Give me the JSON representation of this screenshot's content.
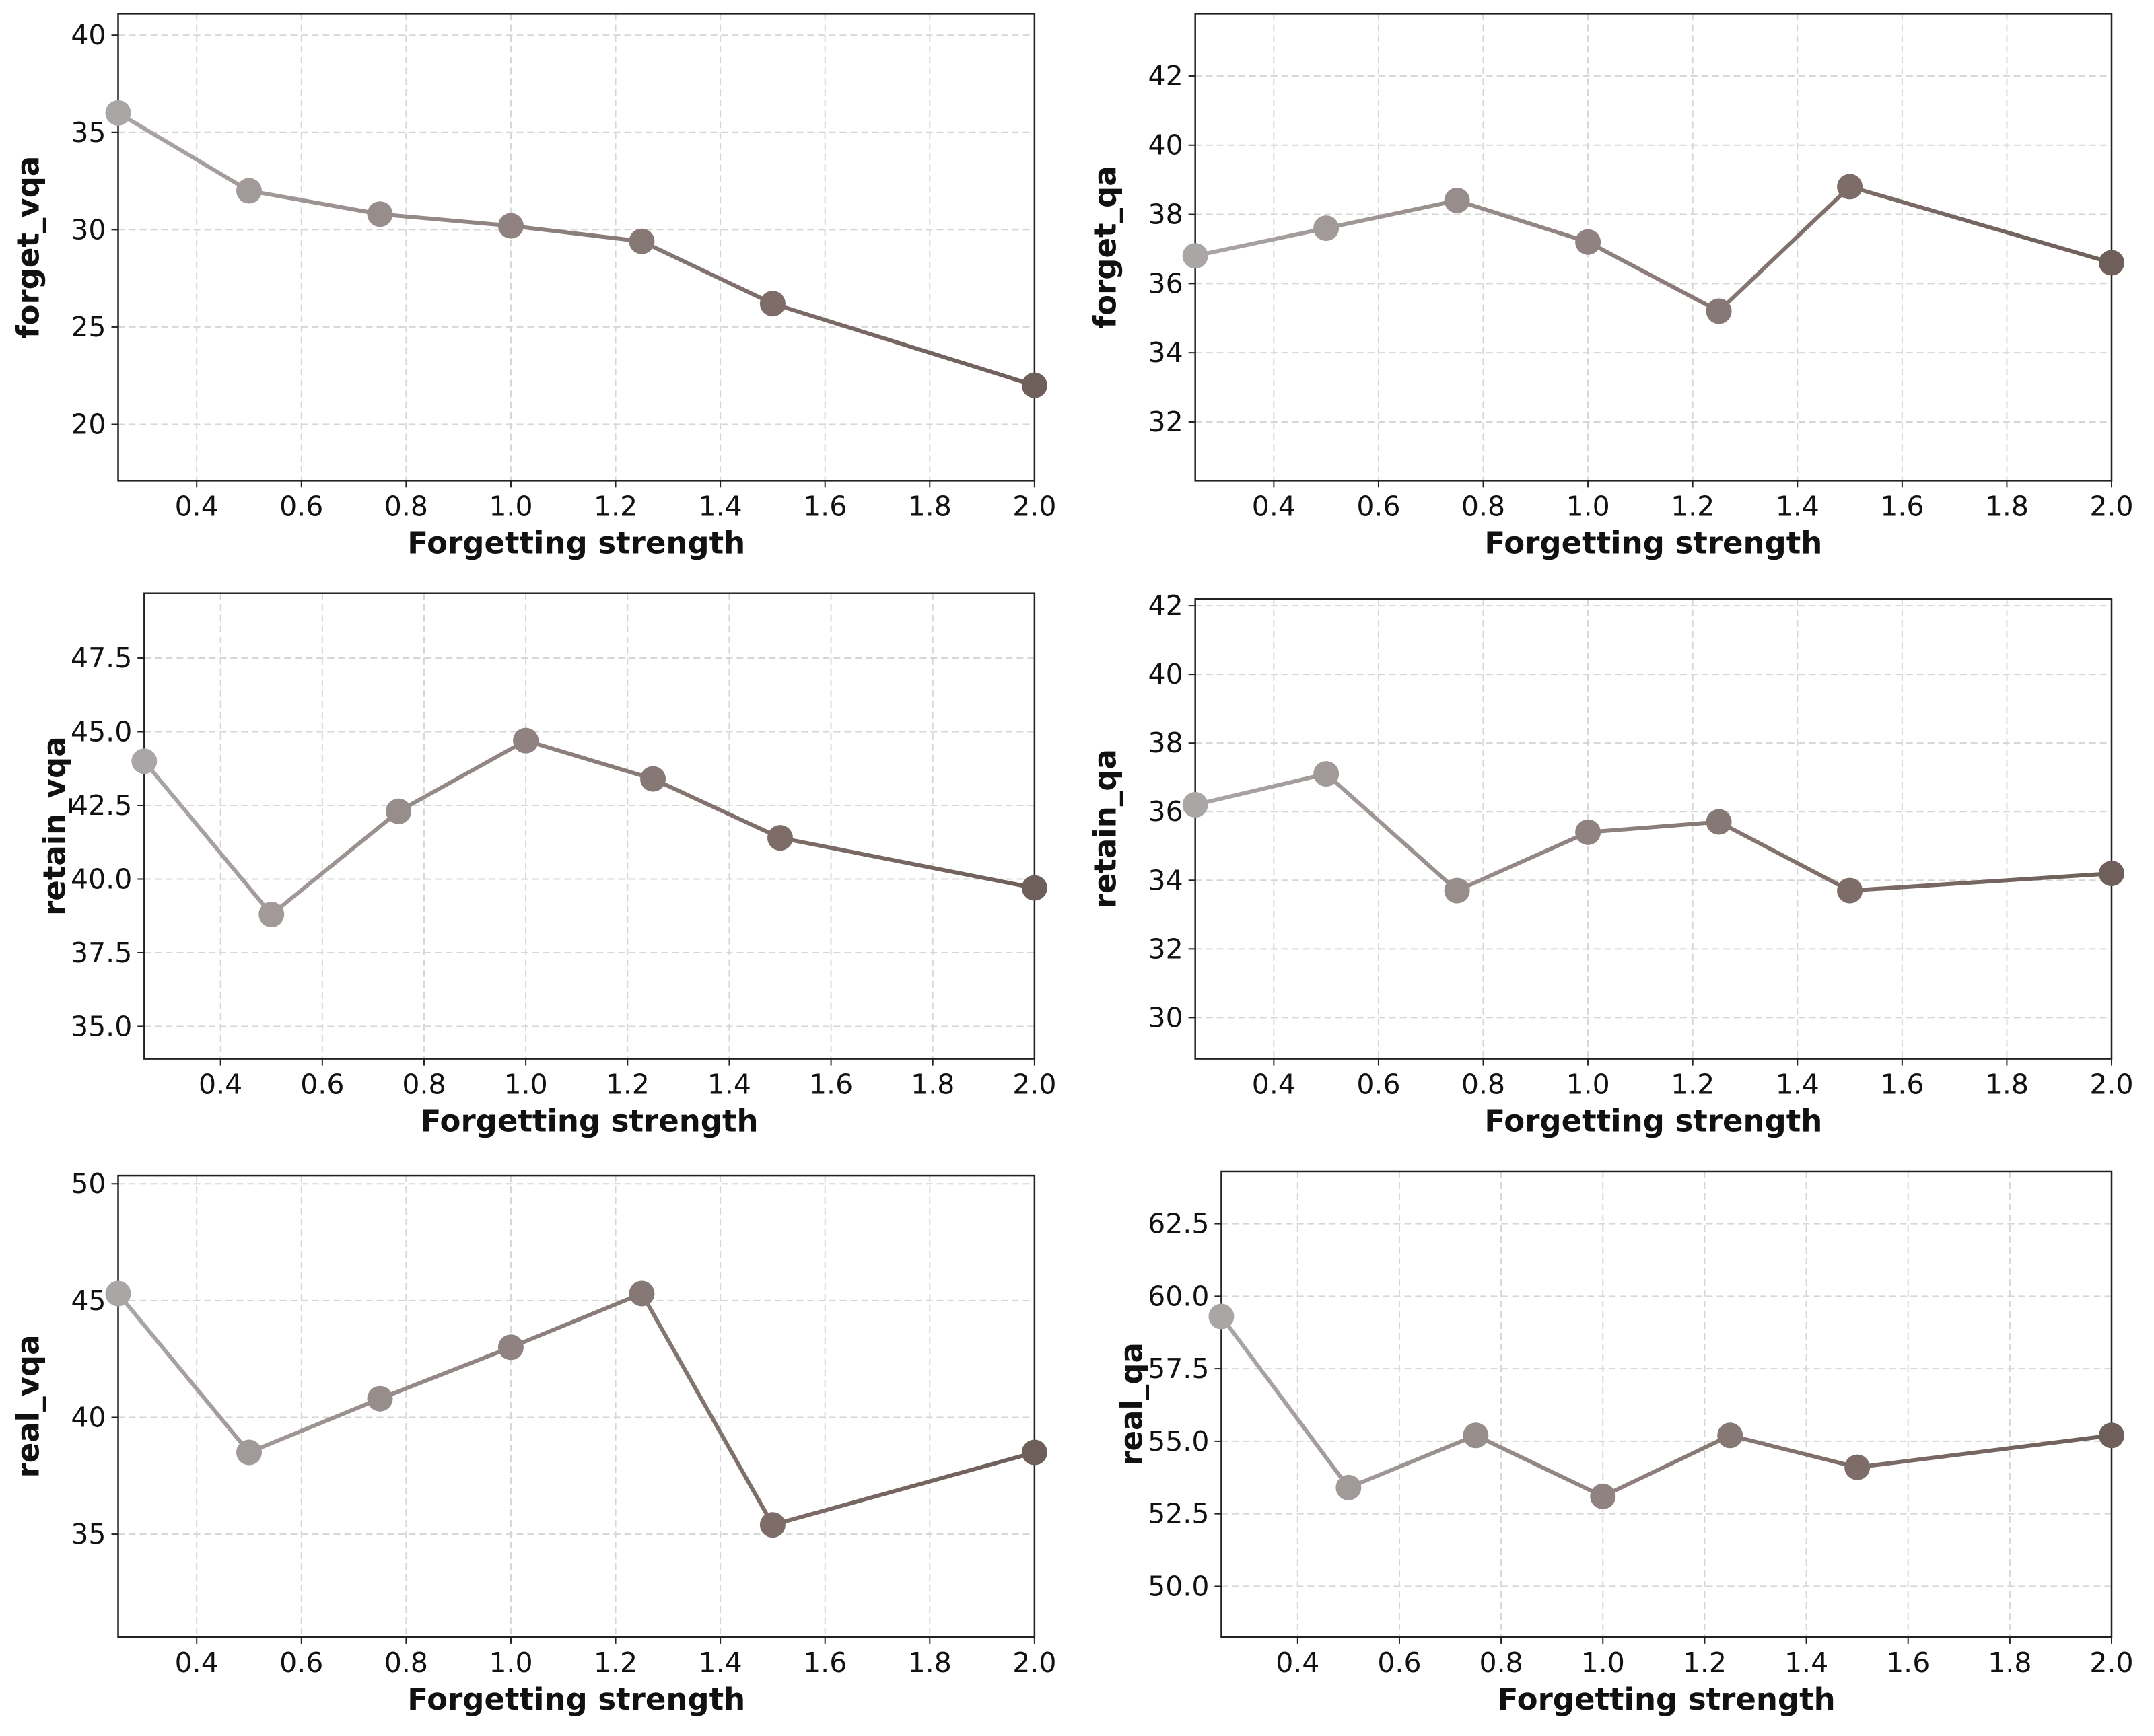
{
  "chart_data": [
    {
      "type": "line",
      "x_label": "Forgetting strength",
      "y_label": "forget_vqa",
      "x": [
        0.25,
        0.5,
        0.75,
        1,
        1.25,
        1.5,
        2
      ],
      "values": [
        36.0,
        32.0,
        30.8,
        30.2,
        29.4,
        26.2,
        22.0
      ],
      "colors": [
        "#aaa6a6",
        "#a29a99",
        "#978d8b",
        "#8f8280",
        "#867874",
        "#7d6c68",
        "#6e5f5a"
      ],
      "xlim": [
        0.25,
        2
      ],
      "ylim": [
        17.1,
        41.1
      ],
      "xticks": [
        0.4,
        0.6,
        0.8,
        {
          "value": 1,
          "label": "1.0"
        },
        1.2,
        1.4,
        1.6,
        1.8,
        {
          "value": 2,
          "label": "2.0"
        }
      ],
      "yticks": [
        20,
        25,
        30,
        35,
        40
      ],
      "grid": true
    },
    {
      "type": "line",
      "x_label": "Forgetting strength",
      "y_label": "forget_qa",
      "x": [
        0.25,
        0.5,
        0.75,
        1,
        1.25,
        1.5,
        2
      ],
      "values": [
        36.8,
        37.6,
        38.4,
        37.2,
        35.2,
        38.8,
        36.6
      ],
      "colors": [
        "#aaa6a6",
        "#a29a99",
        "#978d8b",
        "#8f8280",
        "#867874",
        "#7d6c68",
        "#6e5f5a"
      ],
      "xlim": [
        0.25,
        2
      ],
      "ylim": [
        30.3,
        43.8
      ],
      "xticks": [
        0.4,
        0.6,
        0.8,
        {
          "value": 1,
          "label": "1.0"
        },
        1.2,
        1.4,
        1.6,
        1.8,
        {
          "value": 2,
          "label": "2.0"
        }
      ],
      "yticks": [
        32,
        34,
        36,
        38,
        40,
        42
      ],
      "grid": true
    },
    {
      "type": "line",
      "x_label": "Forgetting strength",
      "y_label": "retain_vqa",
      "x": [
        0.25,
        0.5,
        0.75,
        1,
        1.25,
        1.5,
        2
      ],
      "values": [
        44.0,
        38.8,
        42.3,
        44.7,
        43.4,
        41.4,
        39.7
      ],
      "colors": [
        "#aaa6a6",
        "#a29a99",
        "#978d8b",
        "#8f8280",
        "#867874",
        "#7d6c68",
        "#6e5f5a"
      ],
      "xlim": [
        0.25,
        2
      ],
      "ylim": [
        33.9,
        49.7
      ],
      "xticks": [
        0.4,
        0.6,
        0.8,
        {
          "value": 1,
          "label": "1.0"
        },
        1.2,
        1.4,
        1.6,
        1.8,
        {
          "value": 2,
          "label": "2.0"
        }
      ],
      "yticks": [
        {
          "value": 35,
          "label": "35.0"
        },
        37.5,
        {
          "value": 40,
          "label": "40.0"
        },
        42.5,
        {
          "value": 45,
          "label": "45.0"
        },
        47.5
      ],
      "grid": true
    },
    {
      "type": "line",
      "x_label": "Forgetting strength",
      "y_label": "retain_qa",
      "x": [
        0.25,
        0.5,
        0.75,
        1,
        1.25,
        1.5,
        2
      ],
      "values": [
        36.2,
        37.1,
        33.7,
        35.4,
        35.7,
        33.7,
        34.2
      ],
      "colors": [
        "#aaa6a6",
        "#a29a99",
        "#978d8b",
        "#8f8280",
        "#867874",
        "#7d6c68",
        "#6e5f5a"
      ],
      "xlim": [
        0.25,
        2
      ],
      "ylim": [
        28.8,
        42.2
      ],
      "xticks": [
        0.4,
        0.6,
        0.8,
        {
          "value": 1,
          "label": "1.0"
        },
        1.2,
        1.4,
        1.6,
        1.8,
        {
          "value": 2,
          "label": "2.0"
        }
      ],
      "yticks": [
        30,
        32,
        34,
        36,
        38,
        40,
        42
      ],
      "grid": true
    },
    {
      "type": "line",
      "x_label": "Forgetting strength",
      "y_label": "real_vqa",
      "x": [
        0.25,
        0.5,
        0.75,
        1,
        1.25,
        1.5,
        2
      ],
      "values": [
        45.3,
        38.5,
        40.8,
        43.0,
        45.3,
        35.4,
        38.5
      ],
      "colors": [
        "#aaa6a6",
        "#a29a99",
        "#978d8b",
        "#8f8280",
        "#867874",
        "#7d6c68",
        "#6e5f5a"
      ],
      "xlim": [
        0.25,
        2
      ],
      "ylim": [
        30.6,
        50.35
      ],
      "xticks": [
        0.4,
        0.6,
        0.8,
        {
          "value": 1,
          "label": "1.0"
        },
        1.2,
        1.4,
        1.6,
        1.8,
        {
          "value": 2,
          "label": "2.0"
        }
      ],
      "yticks": [
        35,
        40,
        45,
        50
      ],
      "grid": true
    },
    {
      "type": "line",
      "x_label": "Forgetting strength",
      "y_label": "real_qa",
      "x": [
        0.25,
        0.5,
        0.75,
        1,
        1.25,
        1.5,
        2
      ],
      "values": [
        59.3,
        53.4,
        55.2,
        53.1,
        55.2,
        54.1,
        55.2
      ],
      "colors": [
        "#aaa6a6",
        "#a29a99",
        "#978d8b",
        "#8f8280",
        "#867874",
        "#7d6c68",
        "#6e5f5a"
      ],
      "xlim": [
        0.25,
        2
      ],
      "ylim": [
        48.25,
        64.3
      ],
      "xticks": [
        0.4,
        0.6,
        0.8,
        {
          "value": 1,
          "label": "1.0"
        },
        1.2,
        1.4,
        1.6,
        1.8,
        {
          "value": 2,
          "label": "2.0"
        }
      ],
      "yticks": [
        {
          "value": 50,
          "label": "50.0"
        },
        52.5,
        {
          "value": 55,
          "label": "55.0"
        },
        57.5,
        {
          "value": 60,
          "label": "60.0"
        },
        62.5
      ],
      "grid": true
    }
  ]
}
